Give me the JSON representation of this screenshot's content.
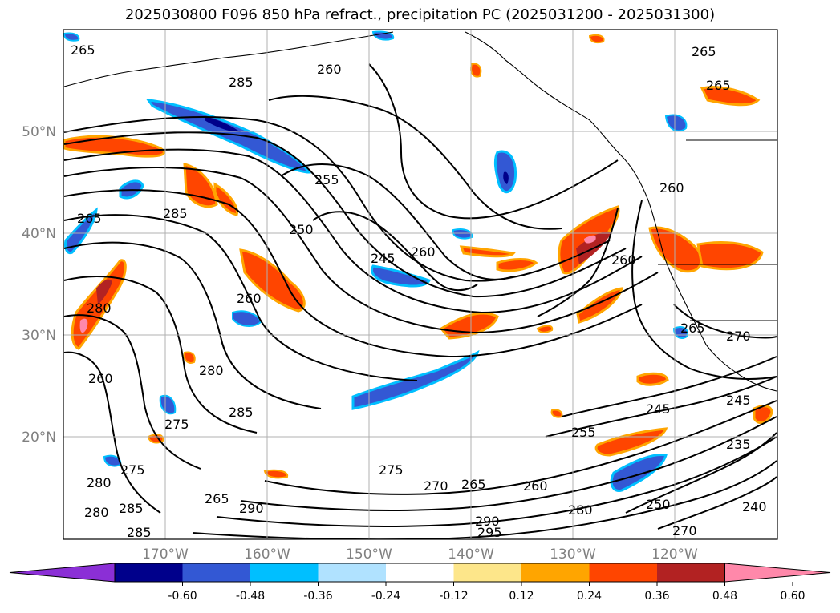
{
  "title": "2025030800 F096 850 hPa refract., precipitation PC (2025031200 - 2025031300)",
  "lat_labels": [
    "50°N",
    "40°N",
    "30°N",
    "20°N"
  ],
  "lon_labels": [
    "170°W",
    "160°W",
    "150°W",
    "140°W",
    "130°W",
    "120°W"
  ],
  "colorbar": {
    "ticks": [
      "-0.60",
      "-0.48",
      "-0.36",
      "-0.24",
      "-0.12",
      "0.12",
      "0.24",
      "0.36",
      "0.48",
      "0.60"
    ],
    "colors": [
      "#8b2fd6",
      "#00008b",
      "#3358d4",
      "#00bfff",
      "#b0e2ff",
      "#ffffff",
      "#fde68a",
      "#ffa500",
      "#ff4500",
      "#b22222",
      "#ff88aa"
    ]
  },
  "contour_labels": [
    "265",
    "260",
    "265",
    "265",
    "285",
    "255",
    "250",
    "245",
    "260",
    "260",
    "260",
    "275",
    "285",
    "260",
    "280",
    "275",
    "280",
    "275",
    "265",
    "270",
    "265",
    "260",
    "280",
    "290",
    "295",
    "250",
    "240",
    "270",
    "235",
    "245",
    "245",
    "255",
    "265",
    "270",
    "285",
    "285",
    "280",
    "280",
    "285",
    "290",
    "260",
    "265"
  ],
  "colors": {
    "contour": "#000000",
    "grid": "#b0b0b0",
    "axis_label": "#808080"
  }
}
